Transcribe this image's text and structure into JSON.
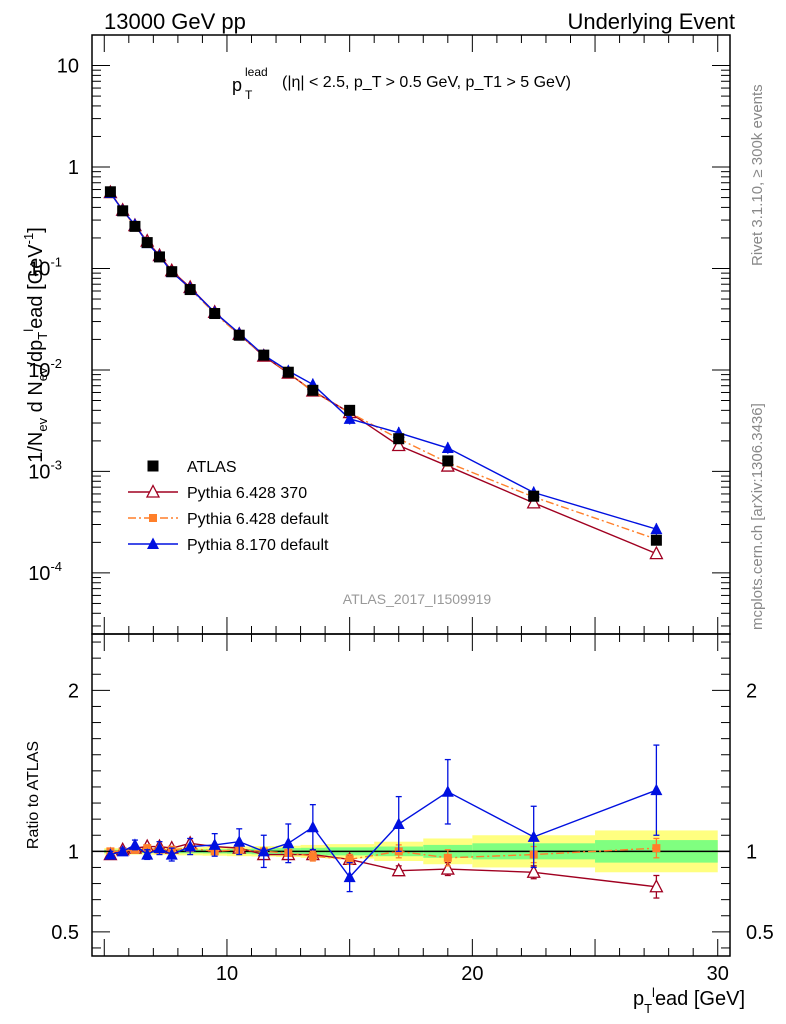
{
  "header": {
    "left": "13000 GeV pp",
    "right": "Underlying Event"
  },
  "side_labels": {
    "rivet": "Rivet 3.1.10, ≥ 300k events",
    "mcplots": "mcplots.cern.ch [arXiv:1306.3436]"
  },
  "plot_label": "ATLAS_2017_I1509919",
  "cut_label": {
    "main": "p",
    "sup": "lead",
    "sub": "T",
    "rest": "(|η| < 2.5, p_T > 0.5 GeV, p_T1 > 5 GeV)"
  },
  "colors": {
    "atlas": "#000000",
    "py6_370": "#a00020",
    "py6_def": "#ff7f2a",
    "py8": "#0010e0",
    "band_stat": "#80ff80",
    "band_tot": "#ffff80"
  },
  "chart_data": [
    {
      "type": "scatter",
      "scale": "log",
      "ylabel": "1/N_ev d N_ev/dp_T^l ead [GeV^-1]",
      "xlim": [
        4.5,
        30.5
      ],
      "ylim": [
        2.5e-05,
        20
      ],
      "ytick_labels": [
        "10^-4",
        "10^-3",
        "10^-2",
        "10^-1",
        "1",
        "10"
      ],
      "x": [
        5.25,
        5.75,
        6.25,
        6.75,
        7.25,
        7.75,
        8.5,
        9.5,
        10.5,
        11.5,
        12.5,
        13.5,
        15.0,
        17.0,
        19.0,
        22.5,
        27.5
      ],
      "series": [
        {
          "name": "ATLAS",
          "values": [
            0.57,
            0.37,
            0.26,
            0.18,
            0.13,
            0.093,
            0.062,
            0.036,
            0.022,
            0.014,
            0.0095,
            0.0063,
            0.004,
            0.0021,
            0.00127,
            0.00057,
            0.00021
          ]
        },
        {
          "name": "Pythia 6.428 370",
          "values": [
            0.56,
            0.375,
            0.265,
            0.186,
            0.134,
            0.095,
            0.065,
            0.037,
            0.0225,
            0.0137,
            0.0093,
            0.0062,
            0.0038,
            0.0018,
            0.00113,
            0.00049,
            0.000155
          ]
        },
        {
          "name": "Pythia 6.428 default",
          "values": [
            0.565,
            0.372,
            0.262,
            0.183,
            0.131,
            0.094,
            0.063,
            0.036,
            0.0222,
            0.014,
            0.0094,
            0.0061,
            0.0038,
            0.0021,
            0.00122,
            0.00056,
            0.000215
          ]
        },
        {
          "name": "Pythia 8.170 default",
          "values": [
            0.555,
            0.372,
            0.27,
            0.178,
            0.133,
            0.092,
            0.064,
            0.037,
            0.023,
            0.014,
            0.0098,
            0.0072,
            0.0033,
            0.0024,
            0.0017,
            0.00062,
            0.00027
          ]
        }
      ]
    },
    {
      "type": "scatter",
      "ylabel": "Ratio to ATLAS",
      "xlabel": "p_T^l ead [GeV]",
      "xlim": [
        4.5,
        30.5
      ],
      "ylim": [
        0.35,
        2.35
      ],
      "ytick_labels": [
        "0.5",
        "1",
        "2"
      ],
      "xtick_labels": [
        "10",
        "20",
        "30"
      ],
      "x": [
        5.25,
        5.75,
        6.25,
        6.75,
        7.25,
        7.75,
        8.5,
        9.5,
        10.5,
        11.5,
        12.5,
        13.5,
        15.0,
        17.0,
        19.0,
        22.5,
        27.5
      ],
      "bands": {
        "edges": [
          5,
          5.5,
          6,
          6.5,
          7,
          7.5,
          8,
          9,
          10,
          11,
          12,
          13,
          14,
          16,
          18,
          20,
          25,
          30
        ],
        "stat": [
          0.01,
          0.01,
          0.01,
          0.01,
          0.01,
          0.012,
          0.012,
          0.013,
          0.015,
          0.018,
          0.02,
          0.022,
          0.025,
          0.03,
          0.04,
          0.05,
          0.07
        ],
        "total": [
          0.02,
          0.02,
          0.02,
          0.02,
          0.022,
          0.022,
          0.025,
          0.027,
          0.03,
          0.032,
          0.035,
          0.04,
          0.045,
          0.06,
          0.08,
          0.1,
          0.13
        ]
      },
      "series": [
        {
          "name": "Pythia 6.428 370",
          "values": [
            0.98,
            1.01,
            1.02,
            1.03,
            1.03,
            1.02,
            1.05,
            1.03,
            1.02,
            0.98,
            0.98,
            0.98,
            0.95,
            0.88,
            0.89,
            0.87,
            0.78
          ],
          "err": [
            0.01,
            0.01,
            0.01,
            0.01,
            0.01,
            0.012,
            0.012,
            0.014,
            0.016,
            0.02,
            0.02,
            0.03,
            0.03,
            0.03,
            0.04,
            0.04,
            0.07
          ]
        },
        {
          "name": "Pythia 6.428 default",
          "values": [
            1.0,
            1.0,
            1.01,
            1.02,
            1.01,
            1.01,
            1.02,
            1.0,
            1.01,
            1.0,
            0.99,
            0.97,
            0.95,
            1.0,
            0.96,
            0.98,
            1.02
          ],
          "err": [
            0.01,
            0.01,
            0.01,
            0.01,
            0.01,
            0.012,
            0.012,
            0.015,
            0.016,
            0.02,
            0.02,
            0.03,
            0.03,
            0.04,
            0.05,
            0.05,
            0.06
          ]
        },
        {
          "name": "Pythia 8.170 default",
          "values": [
            0.98,
            1.0,
            1.04,
            0.98,
            1.02,
            0.98,
            1.03,
            1.04,
            1.06,
            1.0,
            1.05,
            1.15,
            0.84,
            1.17,
            1.37,
            1.09,
            1.38
          ],
          "err": [
            0.02,
            0.02,
            0.03,
            0.03,
            0.04,
            0.04,
            0.05,
            0.07,
            0.08,
            0.1,
            0.12,
            0.14,
            0.09,
            0.17,
            0.2,
            0.19,
            0.28
          ]
        }
      ]
    }
  ]
}
